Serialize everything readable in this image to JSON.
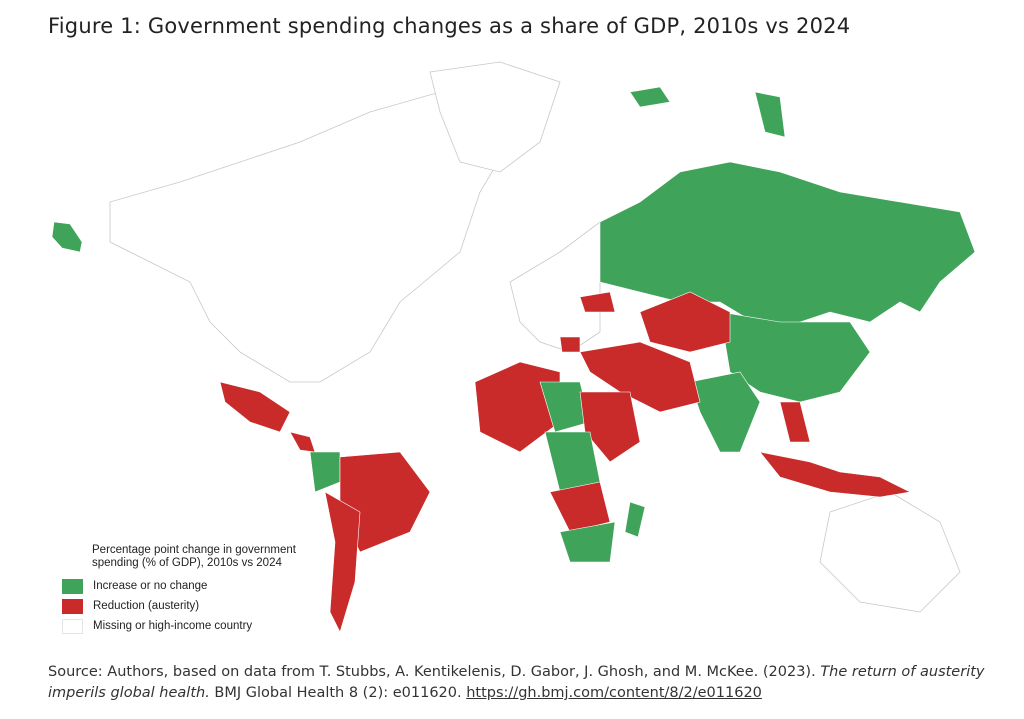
{
  "figure": {
    "title": "Figure 1: Government spending changes as a share of GDP, 2010s vs 2024"
  },
  "colors": {
    "increase": "#3fa35a",
    "reduction": "#c92a2a",
    "missing": "#ffffff",
    "outline": "#c8c8c8"
  },
  "legend": {
    "title": "Percentage point change in government spending (% of GDP), 2010s vs 2024",
    "items": [
      {
        "label": "Increase or no change",
        "color": "#3fa35a"
      },
      {
        "label": "Reduction (austerity)",
        "color": "#c92a2a"
      },
      {
        "label": "Missing or high-income country",
        "color": "#ffffff"
      }
    ]
  },
  "source": {
    "prefix": "Source: Authors, based on data from T. Stubbs, A. Kentikelenis, D. Gabor, J. Ghosh, and M. McKee. (2023). ",
    "article_title": "The return of austerity imperils global health.",
    "journal": " BMJ Global Health 8 (2): e011620. ",
    "link": "https://gh.bmj.com/content/8/2/e011620"
  }
}
